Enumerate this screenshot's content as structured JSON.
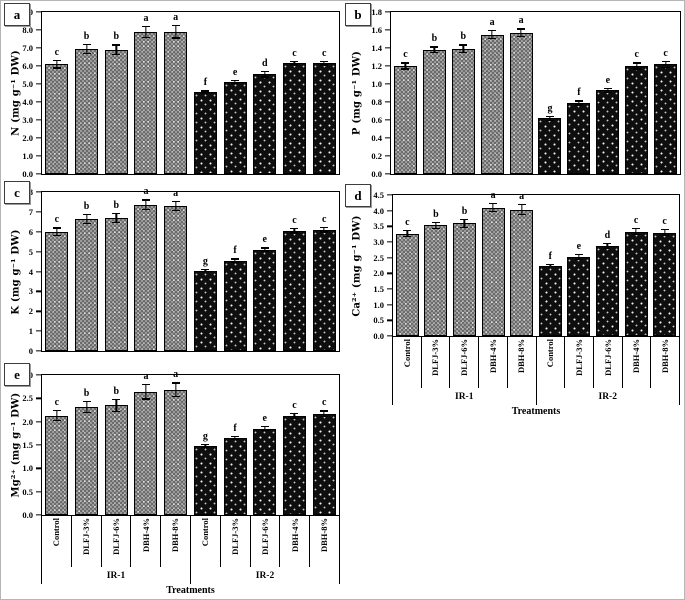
{
  "figure": {
    "background": "#ffffff",
    "border_color": "#b5b5b5"
  },
  "colors": {
    "axis": "#000000",
    "text": "#000000",
    "ir1_bar_fill": "#9a9a9a",
    "ir2_bar_fill": "#0e0e0e"
  },
  "xaxis": {
    "title": "Treatments",
    "treatments": [
      "Control",
      "DLFJ-3%",
      "DLFJ-6%",
      "DBH-4%",
      "DBH-8%"
    ],
    "groups": [
      "IR-1",
      "IR-2"
    ]
  },
  "chart_data": [
    {
      "type": "bar",
      "panel": "a",
      "ylabel": "N (mg g⁻¹ DW)",
      "ymax": 9.0,
      "ytick_labels": [
        "9.0",
        "8.0",
        "7.0",
        "6.0",
        "5.0",
        "4.0",
        "3.0",
        "2.0",
        "1.0",
        "0.0"
      ],
      "show_x_labels": false,
      "categories": [
        "Control",
        "DLFJ-3%",
        "DLFJ-6%",
        "DBH-4%",
        "DBH-8%"
      ],
      "groups": [
        {
          "name": "IR-1",
          "values": [
            6.1,
            6.95,
            6.9,
            7.9,
            7.9
          ],
          "errors": [
            0.25,
            0.3,
            0.3,
            0.35,
            0.38
          ],
          "letters": [
            "c",
            "b",
            "b",
            "a",
            "a"
          ]
        },
        {
          "name": "IR-2",
          "values": [
            4.55,
            5.1,
            5.55,
            6.15,
            6.15
          ],
          "errors": [
            0.1,
            0.12,
            0.2,
            0.13,
            0.13
          ],
          "letters": [
            "f",
            "e",
            "d",
            "c",
            "c"
          ]
        }
      ]
    },
    {
      "type": "bar",
      "panel": "b",
      "ylabel": "P (mg g⁻¹ DW)",
      "ymax": 1.8,
      "ytick_labels": [
        "1.8",
        "1.6",
        "1.4",
        "1.2",
        "1.0",
        "0.8",
        "0.6",
        "0.4",
        "0.2",
        "0.0"
      ],
      "show_x_labels": false,
      "categories": [
        "Control",
        "DLFJ-3%",
        "DLFJ-6%",
        "DBH-4%",
        "DBH-8%"
      ],
      "groups": [
        {
          "name": "IR-1",
          "values": [
            1.2,
            1.38,
            1.39,
            1.55,
            1.57
          ],
          "errors": [
            0.04,
            0.04,
            0.05,
            0.05,
            0.05
          ],
          "letters": [
            "c",
            "b",
            "b",
            "a",
            "a"
          ]
        },
        {
          "name": "IR-2",
          "values": [
            0.62,
            0.79,
            0.93,
            1.2,
            1.22
          ],
          "errors": [
            0.03,
            0.03,
            0.03,
            0.04,
            0.04
          ],
          "letters": [
            "g",
            "f",
            "e",
            "c",
            "c"
          ]
        }
      ]
    },
    {
      "type": "bar",
      "panel": "c",
      "ylabel": "K (mg g⁻¹ DW)",
      "ymax": 8.0,
      "ytick_labels": [
        "8",
        "7",
        "6",
        "5",
        "4",
        "3",
        "2",
        "1",
        "0"
      ],
      "show_x_labels": false,
      "categories": [
        "Control",
        "DLFJ-3%",
        "DLFJ-6%",
        "DBH-4%",
        "DBH-8%"
      ],
      "groups": [
        {
          "name": "IR-1",
          "values": [
            6.0,
            6.65,
            6.7,
            7.35,
            7.3
          ],
          "errors": [
            0.22,
            0.25,
            0.25,
            0.28,
            0.25
          ],
          "letters": [
            "c",
            "b",
            "b",
            "a",
            "a"
          ]
        },
        {
          "name": "IR-2",
          "values": [
            4.05,
            4.55,
            5.1,
            6.05,
            6.1
          ],
          "errors": [
            0.08,
            0.12,
            0.12,
            0.15,
            0.15
          ],
          "letters": [
            "g",
            "f",
            "e",
            "c",
            "c"
          ]
        }
      ]
    },
    {
      "type": "bar",
      "panel": "d",
      "ylabel": "Ca²⁺ (mg g⁻¹ DW)",
      "ymax": 4.5,
      "ytick_labels": [
        "4.5",
        "4.0",
        "3.5",
        "3.0",
        "2.5",
        "2.0",
        "1.5",
        "1.0",
        "0.5",
        "0.0"
      ],
      "show_x_labels": true,
      "categories": [
        "Control",
        "DLFJ-3%",
        "DLFJ-6%",
        "DBH-4%",
        "DBH-8%"
      ],
      "groups": [
        {
          "name": "IR-1",
          "values": [
            3.27,
            3.53,
            3.6,
            4.1,
            4.03
          ],
          "errors": [
            0.12,
            0.12,
            0.15,
            0.15,
            0.18
          ],
          "letters": [
            "c",
            "b",
            "b",
            "a",
            "a"
          ]
        },
        {
          "name": "IR-2",
          "values": [
            2.25,
            2.53,
            2.88,
            3.33,
            3.3
          ],
          "errors": [
            0.06,
            0.1,
            0.1,
            0.12,
            0.12
          ],
          "letters": [
            "f",
            "e",
            "d",
            "c",
            "c"
          ]
        }
      ]
    },
    {
      "type": "bar",
      "panel": "e",
      "ylabel": "Mg²⁺ (mg g⁻¹ DW)",
      "ymax": 3.0,
      "ytick_labels": [
        "3.0",
        "2.5",
        "2.0",
        "1.5",
        "1.0",
        "0.5",
        "0.0"
      ],
      "show_x_labels": true,
      "categories": [
        "Control",
        "DLFJ-3%",
        "DLFJ-6%",
        "DBH-4%",
        "DBH-8%"
      ],
      "groups": [
        {
          "name": "IR-1",
          "values": [
            2.13,
            2.31,
            2.35,
            2.64,
            2.68
          ],
          "errors": [
            0.12,
            0.13,
            0.14,
            0.17,
            0.16
          ],
          "letters": [
            "c",
            "b",
            "b",
            "a",
            "a"
          ]
        },
        {
          "name": "IR-2",
          "values": [
            1.48,
            1.65,
            1.85,
            2.12,
            2.17
          ],
          "errors": [
            0.04,
            0.05,
            0.06,
            0.07,
            0.07
          ],
          "letters": [
            "g",
            "f",
            "e",
            "c",
            "c"
          ]
        }
      ]
    }
  ]
}
